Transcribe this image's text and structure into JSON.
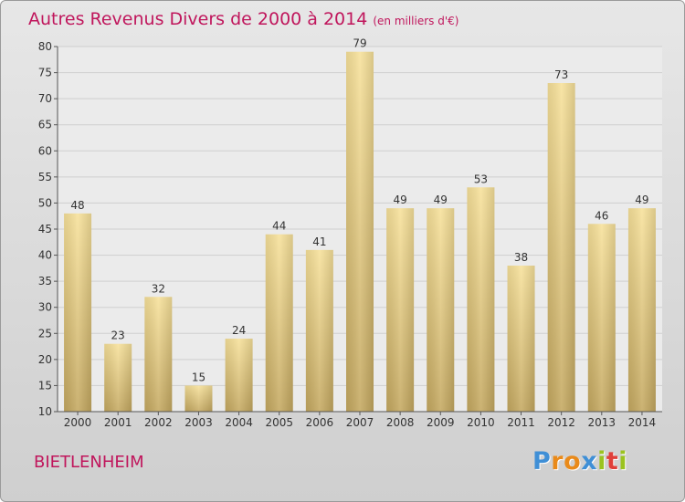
{
  "title": "Autres Revenus Divers de 2000 à 2014",
  "title_unit": "(en milliers d'€)",
  "place": "BIETLENHEIM",
  "logo": {
    "letters": [
      "P",
      "r",
      "o",
      "x",
      "i",
      "t",
      "i"
    ],
    "colors": [
      "#3f8fd6",
      "#e98a1a",
      "#e98a1a",
      "#3f8fd6",
      "#9bc31f",
      "#e0403a",
      "#9bc31f"
    ]
  },
  "colors": {
    "title": "#c0165c",
    "bar_light": "#f7e19a",
    "bar_dark": "#c4a860",
    "grid": "#cfcfcf",
    "axis": "#555555"
  },
  "chart_data": {
    "type": "bar",
    "categories": [
      "2000",
      "2001",
      "2002",
      "2003",
      "2004",
      "2005",
      "2006",
      "2007",
      "2008",
      "2009",
      "2010",
      "2011",
      "2012",
      "2013",
      "2014"
    ],
    "values": [
      48,
      23,
      32,
      15,
      24,
      44,
      41,
      79,
      49,
      49,
      53,
      38,
      73,
      46,
      49
    ],
    "ylim": [
      10,
      80
    ],
    "yticks": [
      10,
      15,
      20,
      25,
      30,
      35,
      40,
      45,
      50,
      55,
      60,
      65,
      70,
      75,
      80
    ],
    "grid": true,
    "data_labels": true
  }
}
